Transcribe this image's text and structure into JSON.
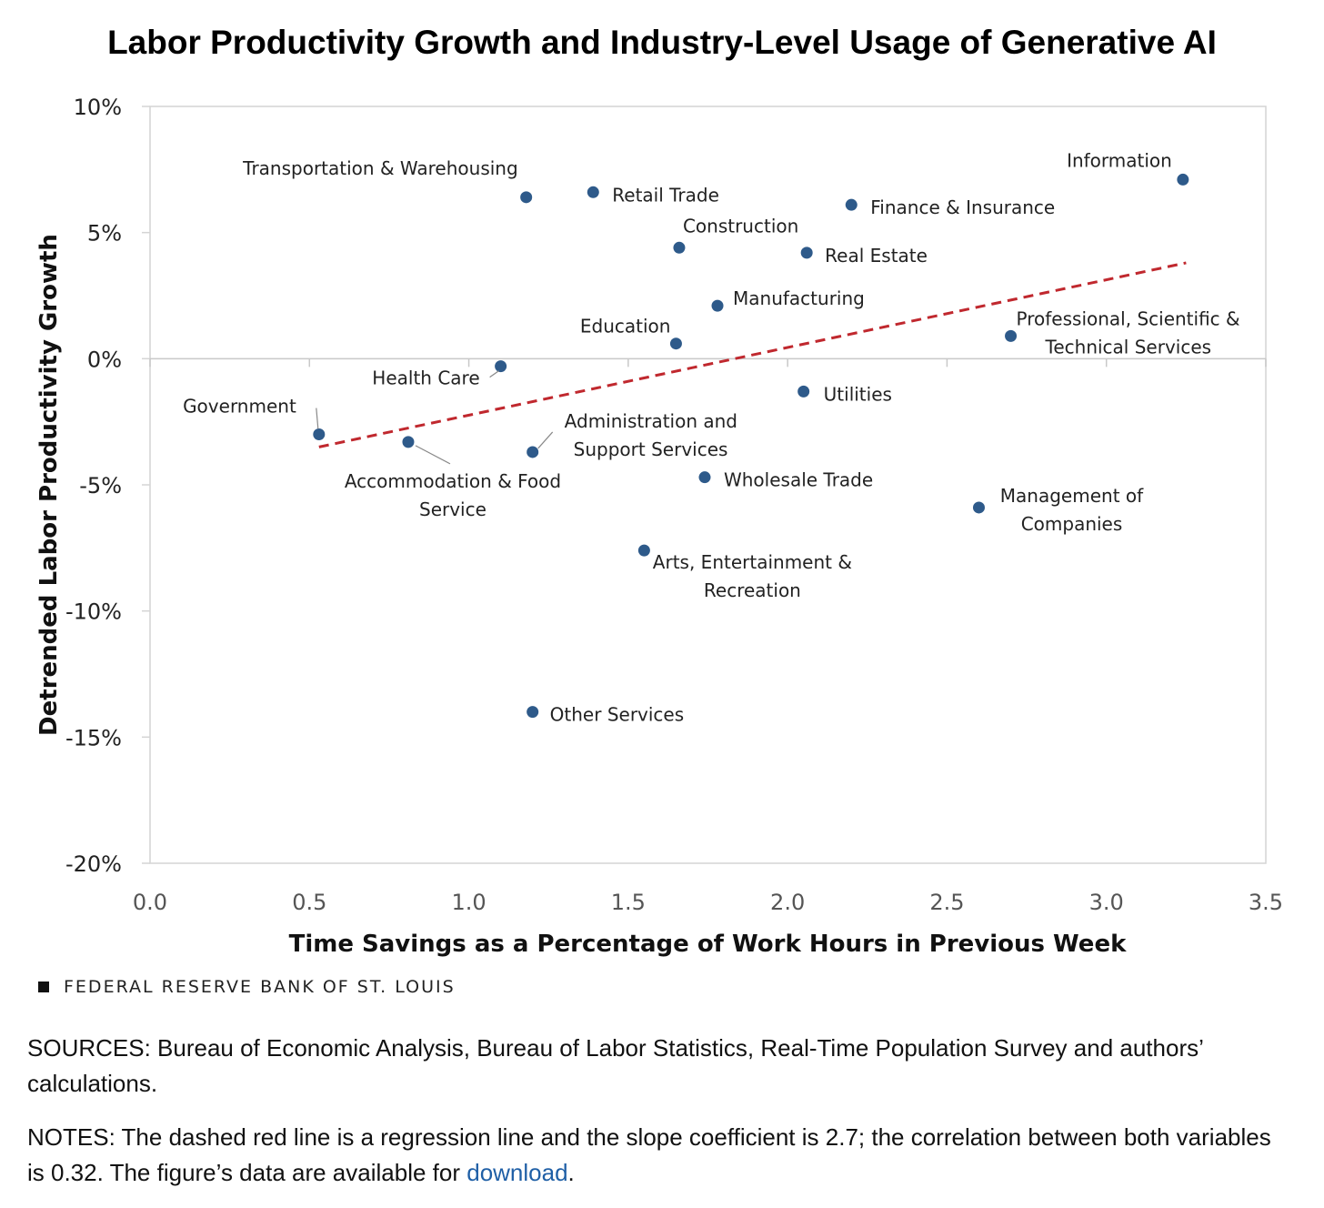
{
  "chart_data": {
    "type": "scatter",
    "title": "Labor Productivity Growth and Industry-Level Usage of Generative AI",
    "xlabel": "Time Savings as a Percentage of Work Hours in Previous Week",
    "ylabel": "Detrended Labor Productivity Growth",
    "xlim": [
      0.0,
      3.5
    ],
    "ylim": [
      -20,
      10
    ],
    "x_ticks": [
      "0.0",
      "0.5",
      "1.0",
      "1.5",
      "2.0",
      "2.5",
      "3.0",
      "3.5"
    ],
    "y_ticks": [
      "10%",
      "5%",
      "0%",
      "-5%",
      "-10%",
      "-15%",
      "-20%"
    ],
    "points": [
      {
        "label": "Transportation & Warehousing",
        "x": 1.18,
        "y": 6.4
      },
      {
        "label": "Retail Trade",
        "x": 1.39,
        "y": 6.6
      },
      {
        "label": "Information",
        "x": 3.24,
        "y": 7.1
      },
      {
        "label": "Finance & Insurance",
        "x": 2.2,
        "y": 6.1
      },
      {
        "label": "Construction",
        "x": 1.66,
        "y": 4.4
      },
      {
        "label": "Real Estate",
        "x": 2.06,
        "y": 4.2
      },
      {
        "label": "Manufacturing",
        "x": 1.78,
        "y": 2.1
      },
      {
        "label": "Education",
        "x": 1.65,
        "y": 0.6
      },
      {
        "label": "Professional, Scientific & Technical Services",
        "x": 2.7,
        "y": 0.9
      },
      {
        "label": "Health Care",
        "x": 1.1,
        "y": -0.3
      },
      {
        "label": "Utilities",
        "x": 2.05,
        "y": -1.3
      },
      {
        "label": "Government",
        "x": 0.53,
        "y": -3.0
      },
      {
        "label": "Accommodation & Food Service",
        "x": 0.81,
        "y": -3.3
      },
      {
        "label": "Administration and Support Services",
        "x": 1.2,
        "y": -3.7
      },
      {
        "label": "Wholesale Trade",
        "x": 1.74,
        "y": -4.7
      },
      {
        "label": "Management of Companies",
        "x": 2.6,
        "y": -5.9
      },
      {
        "label": "Arts, Entertainment & Recreation",
        "x": 1.55,
        "y": -7.6
      },
      {
        "label": "Other Services",
        "x": 1.2,
        "y": -14.0
      }
    ],
    "regression_line": {
      "x": [
        0.53,
        3.25
      ],
      "y": [
        -3.5,
        3.8
      ],
      "style": "dashed",
      "color": "#c0282e"
    },
    "grid": false,
    "colors": {
      "point": "#2e5a8a",
      "regression": "#c0282e",
      "axis": "#d4d4d4"
    }
  },
  "branding": "FEDERAL RESERVE BANK OF ST. LOUIS",
  "sources": "SOURCES: Bureau of Economic Analysis, Bureau of Labor Statistics, Real-Time Population Survey and authors’ calculations.",
  "notes": {
    "text": "NOTES: The dashed red line is a regression line and the slope coefficient is 2.7; the correlation between both variables is 0.32. The figure’s data are available for",
    "link": "download",
    "end": "."
  }
}
